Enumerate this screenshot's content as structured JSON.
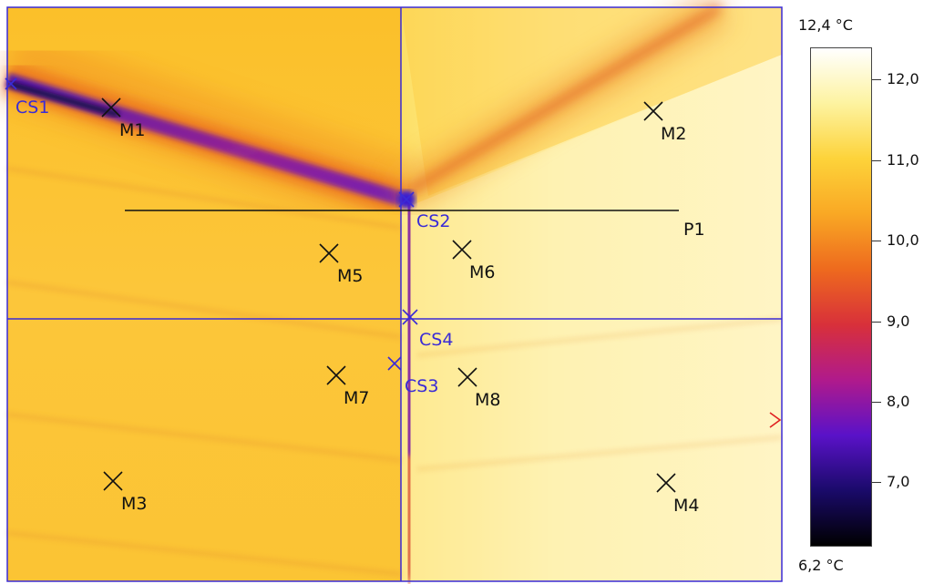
{
  "scale": {
    "max_label": "12,4 °C",
    "min_label": "6,2 °C",
    "max_value": 12.4,
    "min_value": 6.2,
    "ticks": [
      {
        "value": 12.0,
        "label": "12,0"
      },
      {
        "value": 11.0,
        "label": "11,0"
      },
      {
        "value": 10.0,
        "label": "10,0"
      },
      {
        "value": 9.0,
        "label": "9,0"
      },
      {
        "value": 8.0,
        "label": "8,0"
      },
      {
        "value": 7.0,
        "label": "7,0"
      }
    ],
    "palette": [
      "#ffffff",
      "#fdf3a0",
      "#fdd33a",
      "#f9a824",
      "#ee6a1e",
      "#d8303a",
      "#b01a8c",
      "#5a12c8",
      "#1a0a6a",
      "#000000"
    ]
  },
  "markers": {
    "cold_spots": [
      "CS1",
      "CS2",
      "CS3",
      "CS4"
    ],
    "measure_points": [
      "M1",
      "M2",
      "M3",
      "M4",
      "M5",
      "M6",
      "M7",
      "M8"
    ],
    "profile_line": "P1"
  },
  "colors": {
    "overlay_blue": "#3a2bd6",
    "marker_black": "#111111",
    "arrow_red": "#e02020"
  }
}
